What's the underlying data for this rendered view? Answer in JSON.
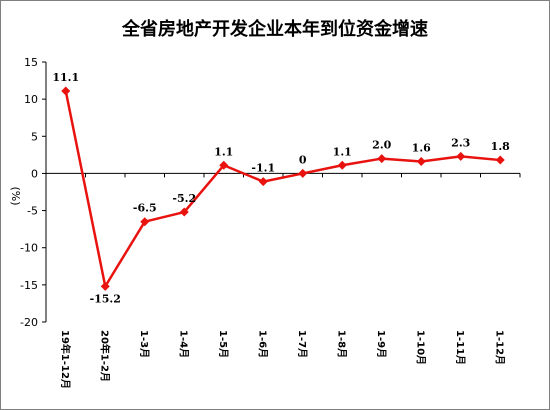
{
  "chart_data": {
    "type": "line",
    "title": "全省房地产开发企业本年到位资金增速",
    "ylabel": "(%)",
    "xlabel": "",
    "ylim": [
      -20,
      15
    ],
    "yticks": [
      15,
      10,
      5,
      0,
      -5,
      -10,
      -15,
      -20
    ],
    "grid": false,
    "categories": [
      "19年1-12月",
      "20年1-2月",
      "1-3月",
      "1-4月",
      "1-5月",
      "1-6月",
      "1-7月",
      "1-8月",
      "1-9月",
      "1-10月",
      "1-11月",
      "1-12月"
    ],
    "series": [
      {
        "values": [
          11.1,
          -15.2,
          -6.5,
          -5.2,
          1.1,
          -1.1,
          0,
          1.1,
          2.0,
          1.6,
          2.3,
          1.8
        ],
        "labels": [
          "11.1",
          "-15.2",
          "-6.5",
          "-5.2",
          "1.1",
          "-1.1",
          "0",
          "1.1",
          "2.0",
          "1.6",
          "2.3",
          "1.8"
        ],
        "color": "#e8120f"
      }
    ]
  }
}
